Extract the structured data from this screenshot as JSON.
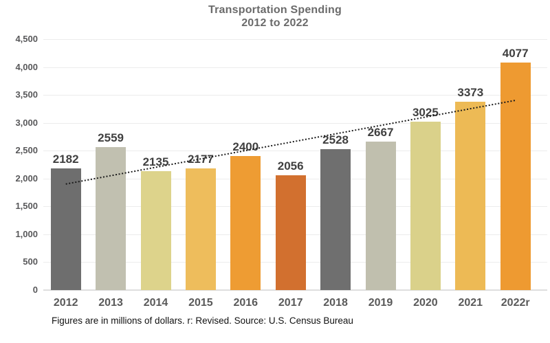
{
  "title": {
    "line1": "Transportation Spending",
    "line2": "2012 to 2022"
  },
  "footer": "Figures are in millions of dollars. r: Revised. Source: U.S. Census Bureau",
  "chart_data": {
    "type": "bar",
    "title": "Transportation Spending 2012 to 2022",
    "categories": [
      "2012",
      "2013",
      "2014",
      "2015",
      "2016",
      "2017",
      "2018",
      "2019",
      "2020",
      "2021",
      "2022r"
    ],
    "values": [
      2182,
      2559,
      2135,
      2177,
      2400,
      2056,
      2528,
      2667,
      3025,
      3373,
      4077
    ],
    "value_labels_shown": true,
    "bar_colors": [
      "#6E6E6E",
      "#C1C0B0",
      "#DDD38B",
      "#EEBD5C",
      "#EE9C33",
      "#D2702F",
      "#6F6F6F",
      "#C0BFAE",
      "#DAD18A",
      "#EDBA55",
      "#EE9A31"
    ],
    "xlabel": "",
    "ylabel": "",
    "ylim": [
      0,
      4500
    ],
    "ytick_interval": 500,
    "ytick_labels": [
      "0",
      "500",
      "1,000",
      "1,500",
      "2,000",
      "2,500",
      "3,000",
      "3,500",
      "4,000",
      "4,500"
    ],
    "grid": true,
    "legend": false,
    "trendline": {
      "style": "dotted",
      "color": "#1a1a1a",
      "start_value": 1902,
      "end_value": 3403
    }
  },
  "colors": {
    "title_text": "#6a6a6a",
    "value_label_text": "#3f3f3f",
    "axis_label_text": "#595959",
    "gridline": "#ececec",
    "background": "#ffffff"
  }
}
